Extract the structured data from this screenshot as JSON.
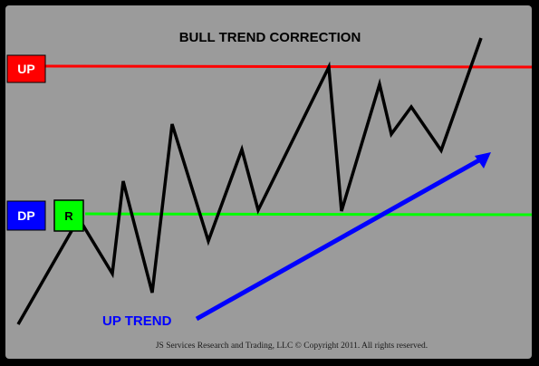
{
  "title": "BULL TREND CORRECTION",
  "labels": {
    "up": "UP",
    "dp": "DP",
    "r": "R",
    "up_trend": "UP TREND"
  },
  "footer": "JS Services Research  and Trading, LLC © Copyright 2011. All rights reserved.",
  "colors": {
    "background": "#000000",
    "panel": "#9b9b9b",
    "up_line": "#ff0000",
    "dp_line": "#00ff00",
    "up_box": "#ff0000",
    "dp_box": "#0000ff",
    "r_box": "#00ff00",
    "price_line": "#000000",
    "trend_arrow": "#0000ff",
    "trend_text": "#0000ff"
  }
}
